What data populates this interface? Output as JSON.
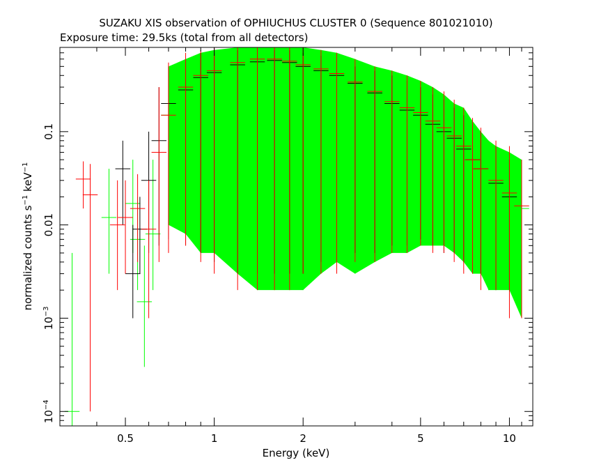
{
  "chart_data": {
    "type": "scatter",
    "title": "SUZAKU XIS observation of OPHIUCHUS CLUSTER 0 (Sequence 801021010)",
    "subtitle": "Exposure time: 29.5ks (total from all detectors)",
    "xlabel": "Energy (keV)",
    "ylabel_parts": [
      "normalized counts s",
      "−1",
      " keV",
      "−1"
    ],
    "x_scale": "log",
    "y_scale": "log",
    "xlim": [
      0.3,
      12
    ],
    "ylim": [
      7e-05,
      0.8
    ],
    "x_ticks": [
      {
        "value": 0.5,
        "label": "0.5"
      },
      {
        "value": 1,
        "label": "1"
      },
      {
        "value": 2,
        "label": "2"
      },
      {
        "value": 5,
        "label": "5"
      },
      {
        "value": 10,
        "label": "10"
      }
    ],
    "y_ticks": [
      {
        "value": 0.1,
        "label": "0.1"
      },
      {
        "value": 0.01,
        "label": "0.01"
      },
      {
        "value": 0.001,
        "base": "10",
        "exp": "−3"
      },
      {
        "value": 0.0001,
        "base": "10",
        "exp": "−4"
      }
    ],
    "grid": false,
    "colors": {
      "black": "#000000",
      "red": "#ff0000",
      "green": "#00ff00"
    },
    "series": [
      {
        "color": "green",
        "x": [
          0.33,
          0.44,
          0.53,
          0.55,
          0.58,
          0.62,
          0.7,
          0.8,
          0.9,
          1.0,
          1.2,
          1.4,
          1.6,
          1.8,
          2.0,
          2.3,
          2.6,
          3.0,
          3.5,
          4.0,
          4.5,
          5.0,
          5.5,
          6.0,
          6.5,
          7.0,
          7.5,
          8.0,
          8.5,
          9.0,
          10.0,
          11.0
        ],
        "y": [
          0.0001,
          0.012,
          0.017,
          0.007,
          0.0015,
          0.008,
          0.15,
          0.25,
          0.35,
          0.42,
          0.5,
          0.55,
          0.57,
          0.55,
          0.5,
          0.45,
          0.4,
          0.32,
          0.25,
          0.2,
          0.17,
          0.15,
          0.12,
          0.1,
          0.08,
          0.06,
          0.045,
          0.035,
          0.03,
          0.025,
          0.02,
          0.015
        ],
        "ylow": [
          7e-05,
          0.003,
          0.005,
          0.002,
          0.0003,
          0.002,
          0.01,
          0.008,
          0.005,
          0.005,
          0.003,
          0.002,
          0.002,
          0.002,
          0.002,
          0.003,
          0.004,
          0.003,
          0.004,
          0.005,
          0.005,
          0.006,
          0.006,
          0.006,
          0.005,
          0.004,
          0.003,
          0.003,
          0.002,
          0.002,
          0.002,
          0.001
        ],
        "yhigh": [
          0.005,
          0.04,
          0.05,
          0.02,
          0.006,
          0.05,
          0.5,
          0.6,
          0.7,
          0.75,
          0.8,
          0.8,
          0.8,
          0.8,
          0.8,
          0.75,
          0.7,
          0.6,
          0.5,
          0.45,
          0.4,
          0.35,
          0.3,
          0.25,
          0.2,
          0.18,
          0.13,
          0.1,
          0.08,
          0.07,
          0.06,
          0.05
        ]
      },
      {
        "color": "red",
        "x": [
          0.36,
          0.38,
          0.47,
          0.5,
          0.55,
          0.6,
          0.65,
          0.7,
          0.8,
          0.9,
          1.0,
          1.2,
          1.4,
          1.6,
          1.8,
          2.0,
          2.3,
          2.6,
          3.0,
          3.5,
          4.0,
          4.5,
          5.0,
          5.5,
          6.0,
          6.5,
          7.0,
          7.5,
          8.0,
          9.0,
          10.0,
          11.0
        ],
        "y": [
          0.031,
          0.021,
          0.01,
          0.012,
          0.015,
          0.009,
          0.06,
          0.15,
          0.3,
          0.4,
          0.45,
          0.55,
          0.6,
          0.6,
          0.57,
          0.52,
          0.47,
          0.42,
          0.34,
          0.27,
          0.21,
          0.18,
          0.16,
          0.13,
          0.11,
          0.09,
          0.07,
          0.05,
          0.04,
          0.03,
          0.022,
          0.016
        ],
        "ylow": [
          0.015,
          0.0001,
          0.002,
          0.003,
          0.004,
          0.001,
          0.004,
          0.005,
          0.006,
          0.004,
          0.003,
          0.002,
          0.002,
          0.002,
          0.002,
          0.003,
          0.003,
          0.003,
          0.004,
          0.004,
          0.005,
          0.005,
          0.006,
          0.005,
          0.005,
          0.004,
          0.003,
          0.003,
          0.002,
          0.002,
          0.001,
          0.001
        ],
        "yhigh": [
          0.048,
          0.045,
          0.03,
          0.03,
          0.035,
          0.03,
          0.3,
          0.55,
          0.7,
          0.75,
          0.8,
          0.8,
          0.8,
          0.8,
          0.8,
          0.8,
          0.75,
          0.7,
          0.6,
          0.5,
          0.45,
          0.4,
          0.35,
          0.3,
          0.27,
          0.22,
          0.18,
          0.14,
          0.11,
          0.08,
          0.07,
          0.05
        ]
      },
      {
        "color": "black",
        "x": [
          0.49,
          0.53,
          0.56,
          0.6,
          0.65,
          0.7,
          0.8,
          0.9,
          1.0,
          1.2,
          1.4,
          1.6,
          1.8,
          2.0,
          2.3,
          2.6,
          3.0,
          3.5,
          4.0,
          4.5,
          5.0,
          5.5,
          6.0,
          6.5,
          7.0,
          7.5,
          8.0,
          9.0,
          10.0
        ],
        "y": [
          0.04,
          0.003,
          0.009,
          0.03,
          0.08,
          0.2,
          0.28,
          0.38,
          0.43,
          0.52,
          0.56,
          0.58,
          0.55,
          0.5,
          0.45,
          0.4,
          0.33,
          0.26,
          0.2,
          0.17,
          0.15,
          0.12,
          0.1,
          0.085,
          0.065,
          0.05,
          0.04,
          0.028,
          0.02
        ],
        "ylow": [
          0.01,
          0.001,
          0.003,
          0.005,
          0.006,
          0.007,
          0.006,
          0.005,
          0.004,
          0.003,
          0.003,
          0.003,
          0.003,
          0.003,
          0.004,
          0.004,
          0.005,
          0.005,
          0.006,
          0.006,
          0.007,
          0.006,
          0.005,
          0.005,
          0.004,
          0.003,
          0.003,
          0.002,
          0.002
        ],
        "yhigh": [
          0.08,
          0.01,
          0.02,
          0.1,
          0.3,
          0.5,
          0.6,
          0.7,
          0.7,
          0.75,
          0.75,
          0.75,
          0.75,
          0.7,
          0.65,
          0.6,
          0.5,
          0.45,
          0.4,
          0.35,
          0.3,
          0.25,
          0.22,
          0.18,
          0.15,
          0.12,
          0.1,
          0.07,
          0.05
        ]
      }
    ]
  }
}
